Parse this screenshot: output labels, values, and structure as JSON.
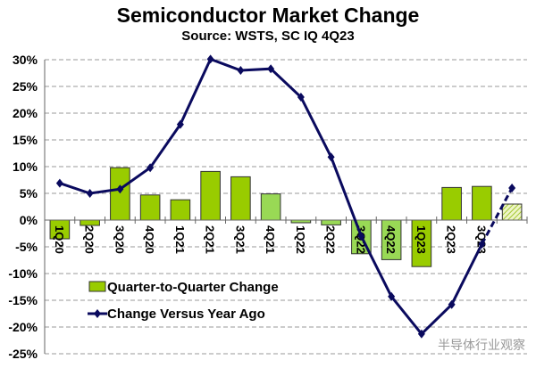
{
  "chart_data": {
    "type": "bar+line",
    "title": "Semiconductor Market Change",
    "subtitle": "Source: WSTS, SC IQ 4Q23",
    "categories": [
      "1Q20",
      "2Q20",
      "3Q20",
      "4Q20",
      "1Q21",
      "2Q21",
      "3Q21",
      "4Q21",
      "1Q22",
      "2Q22",
      "3Q22",
      "4Q22",
      "1Q23",
      "2Q23",
      "3Q23",
      ""
    ],
    "ylim": [
      -25,
      30
    ],
    "yticks": [
      "30%",
      "25%",
      "20%",
      "15%",
      "10%",
      "5%",
      "0%",
      "-5%",
      "-10%",
      "-15%",
      "-20%",
      "-25%"
    ],
    "grid": true,
    "legend_placement": "lower-left",
    "series": [
      {
        "name": "Quarter-to-Quarter Change",
        "type": "bar",
        "values": [
          -3.5,
          -1.0,
          9.8,
          4.7,
          3.8,
          9.1,
          8.1,
          4.9,
          -0.5,
          -0.9,
          -6.3,
          -7.4,
          -8.7,
          6.1,
          6.3,
          3.0
        ],
        "forecast_last": true,
        "color": "#99cc00"
      },
      {
        "name": "Change Versus Year Ago",
        "type": "line",
        "values": [
          6.9,
          5.0,
          5.8,
          9.8,
          17.9,
          30.1,
          28.0,
          28.3,
          23.0,
          11.8,
          -3.0,
          -14.3,
          -21.3,
          -15.8,
          -4.5,
          6.0
        ],
        "forecast_last": true,
        "color": "#0a0a5e"
      }
    ]
  },
  "watermark": "半导体行业观察"
}
